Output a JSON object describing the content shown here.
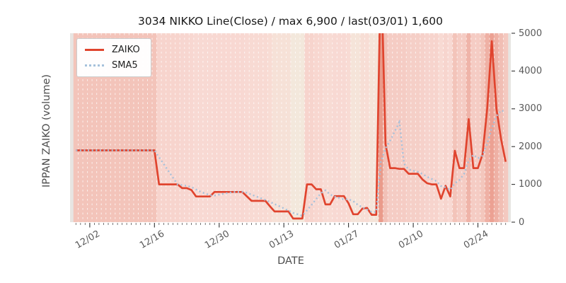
{
  "chart_data": {
    "type": "line",
    "title": "3034 NIKKO Line(Close) / max 6,900 / last(03/01) 1,600",
    "xlabel": "DATE",
    "ylabel": "IPPAN ZAIKO (volume)",
    "ylim": [
      0,
      5000
    ],
    "yticks": [
      0,
      1000,
      2000,
      3000,
      4000,
      5000
    ],
    "xtick_labels": [
      "12/02",
      "12/16",
      "12/30",
      "01/13",
      "01/27",
      "02/10",
      "02/24"
    ],
    "legend_position": "upper left",
    "grid": "vertical white dashed line per day; no horizontal gridlines",
    "background_note": "one heat band per day, red intensity follows ZAIKO value (light cream = low, deep red = high); gray margins at plot edges",
    "max_value": 6900,
    "last_date": "03/01",
    "last_value": 1600,
    "dates": [
      "11/29",
      "11/30",
      "12/01",
      "12/02",
      "12/03",
      "12/04",
      "12/05",
      "12/06",
      "12/07",
      "12/08",
      "12/09",
      "12/10",
      "12/11",
      "12/12",
      "12/13",
      "12/14",
      "12/15",
      "12/16",
      "12/17",
      "12/18",
      "12/19",
      "12/20",
      "12/21",
      "12/22",
      "12/23",
      "12/24",
      "12/25",
      "12/26",
      "12/27",
      "12/28",
      "12/29",
      "12/30",
      "12/31",
      "01/01",
      "01/02",
      "01/03",
      "01/04",
      "01/05",
      "01/06",
      "01/07",
      "01/08",
      "01/09",
      "01/10",
      "01/11",
      "01/12",
      "01/13",
      "01/14",
      "01/15",
      "01/16",
      "01/17",
      "01/18",
      "01/19",
      "01/20",
      "01/21",
      "01/22",
      "01/23",
      "01/24",
      "01/25",
      "01/26",
      "01/27",
      "01/28",
      "01/29",
      "01/30",
      "01/31",
      "02/01",
      "02/02",
      "02/03",
      "02/04",
      "02/05",
      "02/06",
      "02/07",
      "02/08",
      "02/09",
      "02/10",
      "02/11",
      "02/12",
      "02/13",
      "02/14",
      "02/15",
      "02/16",
      "02/17",
      "02/18",
      "02/19",
      "02/20",
      "02/21",
      "02/22",
      "02/23",
      "02/24",
      "02/25",
      "02/26",
      "02/27",
      "02/28",
      "02/29",
      "03/01"
    ],
    "series": [
      {
        "name": "ZAIKO",
        "color": "#e0442e",
        "line_style": "solid",
        "values": [
          1900,
          1900,
          1900,
          1900,
          1900,
          1900,
          1900,
          1900,
          1900,
          1900,
          1900,
          1900,
          1900,
          1900,
          1900,
          1900,
          1900,
          1900,
          1000,
          1000,
          1000,
          1000,
          1000,
          900,
          900,
          850,
          680,
          680,
          680,
          680,
          800,
          800,
          800,
          800,
          800,
          800,
          800,
          683,
          564,
          564,
          564,
          564,
          420,
          282,
          282,
          282,
          282,
          95,
          95,
          95,
          1000,
          1000,
          870,
          870,
          470,
          470,
          690,
          690,
          690,
          500,
          210,
          210,
          360,
          376,
          195,
          195,
          6900,
          2070,
          1430,
          1430,
          1410,
          1410,
          1280,
          1280,
          1280,
          1130,
          1030,
          1000,
          1000,
          620,
          960,
          680,
          1890,
          1430,
          1430,
          2726,
          1430,
          1430,
          1800,
          3000,
          4790,
          3000,
          2200,
          1600
        ]
      },
      {
        "name": "SMA5",
        "color": "#a6c1db",
        "line_style": "dotted",
        "derived_from": "ZAIKO",
        "window": 5
      }
    ],
    "heat_colormap": [
      [
        0,
        "#f2ece0"
      ],
      [
        150,
        "#f4e6da"
      ],
      [
        400,
        "#f8dcd4"
      ],
      [
        800,
        "#f8d8d2"
      ],
      [
        1100,
        "#f6d2cb"
      ],
      [
        1600,
        "#f4c9c0"
      ],
      [
        2000,
        "#f2c2b8"
      ],
      [
        2800,
        "#efb3a7"
      ],
      [
        4000,
        "#eda69a"
      ],
      [
        5200,
        "#eb9e8f"
      ],
      [
        7000,
        "#ea9b8b"
      ]
    ]
  },
  "legend": {
    "items": [
      {
        "label": "ZAIKO",
        "color": "#e0442e",
        "line_style": "solid"
      },
      {
        "label": "SMA5",
        "color": "#a6c1db",
        "line_style": "dotted"
      }
    ]
  },
  "figure": {
    "title": "3034 NIKKO Line(Close) / max 6,900 / last(03/01) 1,600",
    "xlabel": "DATE",
    "ylabel": "IPPAN ZAIKO (volume)"
  }
}
